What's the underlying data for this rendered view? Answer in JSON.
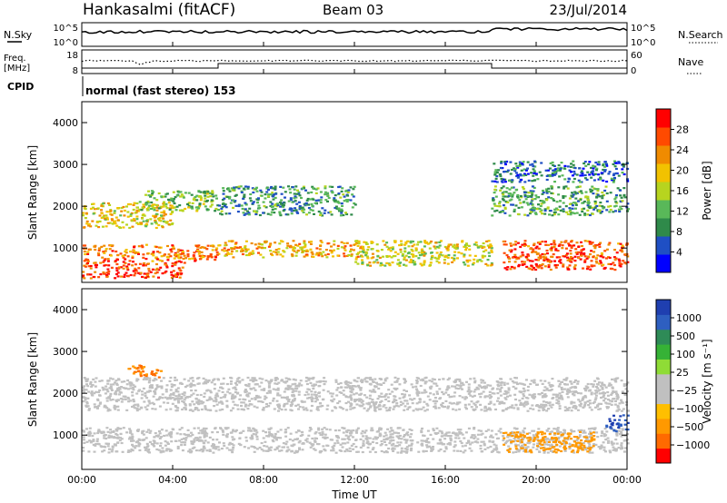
{
  "header": {
    "station": "Hankasalmi (fitACF)",
    "beam": "Beam 03",
    "date": "23/Jul/2014"
  },
  "strips": {
    "nsky_label": "N.Sky",
    "nsky_ticks": [
      "10^5",
      "10^0"
    ],
    "nsearch_label": "N.Search",
    "freq_label_1": "Freq.",
    "freq_label_2": "[MHz]",
    "freq_ticks": [
      "18",
      "8"
    ],
    "nave_label": "Nave",
    "nave_ticks": [
      "60",
      "0"
    ],
    "cpid_label": "CPID",
    "cpid_text": "normal (fast stereo) 153"
  },
  "colors": {
    "power": [
      "#0000ff",
      "#1f4fc4",
      "#2f8a4a",
      "#59b859",
      "#b7d41f",
      "#f2c200",
      "#f08b00",
      "#ff4a00",
      "#ff0000"
    ],
    "velocity": [
      "#ff0000",
      "#ff6a00",
      "#ff9900",
      "#ffbf00",
      "#c0c0c0",
      "#c0c0c0",
      "#8fdc36",
      "#36b236",
      "#2e8b57",
      "#2e5fc0",
      "#1f3fb0"
    ]
  },
  "chart_data": [
    {
      "type": "heatmap",
      "title": "",
      "xlabel": "Time UT",
      "ylabel": "Slant Range [km]",
      "xlim": [
        "00:00",
        "24:00"
      ],
      "ylim": [
        180,
        4500
      ],
      "x_ticks": [
        "00:00",
        "04:00",
        "08:00",
        "12:00",
        "16:00",
        "20:00",
        "00:00"
      ],
      "y_ticks": [
        "1000",
        "2000",
        "3000",
        "4000"
      ],
      "colorbar": {
        "label": "Power [dB]",
        "ticks": [
          "4",
          "8",
          "12",
          "16",
          "20",
          "24",
          "28"
        ],
        "range": [
          0,
          30
        ]
      },
      "series": [
        {
          "name": "",
          "bands": [
            {
              "t": [
                0,
                4.5
              ],
              "r": [
                300,
                700
              ],
              "level": 27
            },
            {
              "t": [
                0,
                6
              ],
              "r": [
                700,
                1100
              ],
              "level": 24
            },
            {
              "t": [
                0,
                4
              ],
              "r": [
                1500,
                2100
              ],
              "level": 18
            },
            {
              "t": [
                2.5,
                6
              ],
              "r": [
                1900,
                2400
              ],
              "level": 12
            },
            {
              "t": [
                6,
                12.5
              ],
              "r": [
                800,
                1200
              ],
              "level": 20
            },
            {
              "t": [
                6,
                12
              ],
              "r": [
                1800,
                2500
              ],
              "level": 8
            },
            {
              "t": [
                12,
                18
              ],
              "r": [
                600,
                1200
              ],
              "level": 16
            },
            {
              "t": [
                18.5,
                24
              ],
              "r": [
                500,
                1200
              ],
              "level": 26
            },
            {
              "t": [
                18,
                24
              ],
              "r": [
                1800,
                2500
              ],
              "level": 10
            },
            {
              "t": [
                18,
                24
              ],
              "r": [
                2600,
                3100
              ],
              "level": 6
            }
          ]
        }
      ]
    },
    {
      "type": "heatmap",
      "title": "",
      "xlabel": "Time UT",
      "ylabel": "Slant Range [km]",
      "xlim": [
        "00:00",
        "24:00"
      ],
      "ylim": [
        180,
        4500
      ],
      "x_ticks": [
        "00:00",
        "04:00",
        "08:00",
        "12:00",
        "16:00",
        "20:00",
        "00:00"
      ],
      "y_ticks": [
        "1000",
        "2000",
        "3000",
        "4000"
      ],
      "colorbar": {
        "label": "Velocity [m s⁻¹]",
        "ticks": [
          "1000",
          "500",
          "100",
          "25",
          "−25",
          "−100",
          "−500",
          "−1000"
        ]
      },
      "series": [
        {
          "name": "",
          "bands": [
            {
              "t": [
                0,
                24
              ],
              "r": [
                600,
                1200
              ],
              "level": 0
            },
            {
              "t": [
                0,
                24
              ],
              "r": [
                1600,
                2400
              ],
              "level": 0
            },
            {
              "t": [
                2,
                3.5
              ],
              "r": [
                2400,
                2700
              ],
              "level": -300
            },
            {
              "t": [
                18.5,
                22.5
              ],
              "r": [
                600,
                1100
              ],
              "level": -200
            },
            {
              "t": [
                23,
                24
              ],
              "r": [
                1100,
                1500
              ],
              "level": 600
            }
          ]
        }
      ]
    }
  ],
  "axis_title": "Time UT"
}
